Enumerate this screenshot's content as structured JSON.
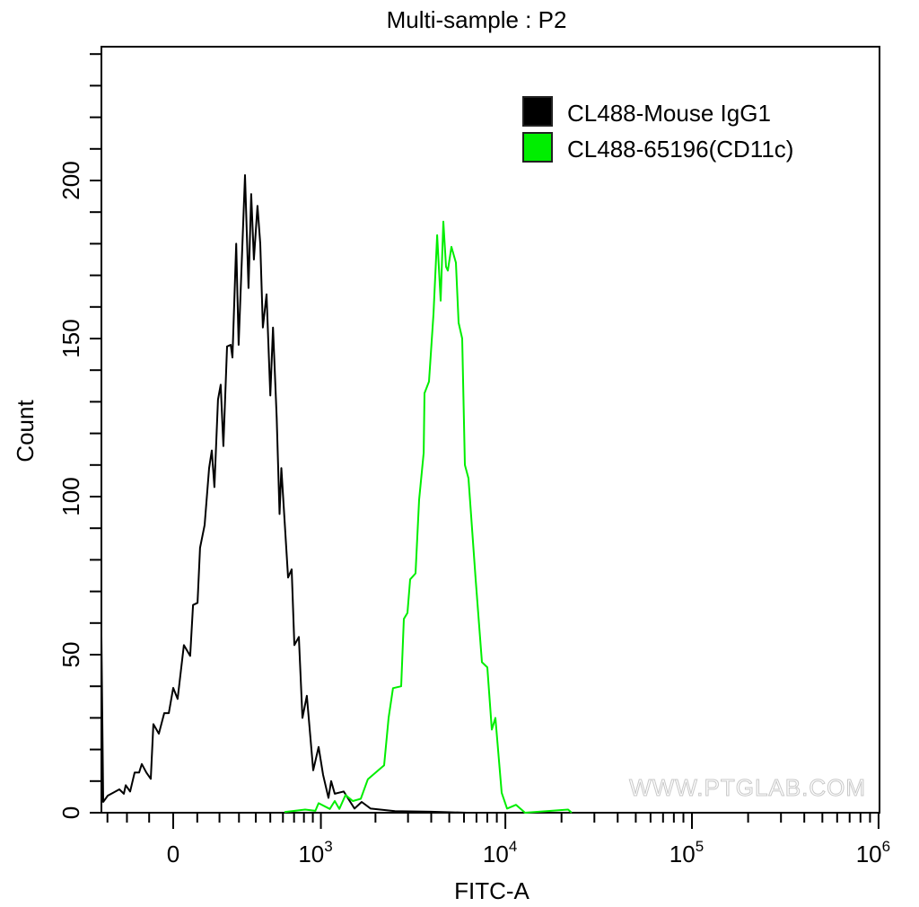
{
  "chart_data": {
    "type": "line",
    "title": "Multi-sample : P2",
    "xlabel": "FITC-A",
    "ylabel": "Count",
    "x_scale": "biexponential",
    "xlim": [
      -334,
      1000000
    ],
    "ylim": [
      0,
      242
    ],
    "x_major_ticks": [
      {
        "value": 0,
        "base": "0",
        "exp": ""
      },
      {
        "value": 1000,
        "base": "10",
        "exp": "3"
      },
      {
        "value": 10000,
        "base": "10",
        "exp": "4"
      },
      {
        "value": 100000,
        "base": "10",
        "exp": "5"
      },
      {
        "value": 1000000,
        "base": "10",
        "exp": "6"
      }
    ],
    "y_tick_labels": [
      "0",
      "50",
      "100",
      "150",
      "200"
    ],
    "y_tick_values": [
      0,
      50,
      100,
      150,
      200
    ],
    "grid": false,
    "legend_position": "top-right",
    "watermark": "WWW.PTGLAB.COM",
    "series": [
      {
        "name": "CL488-Mouse IgG1",
        "color": "#000000",
        "points": [
          [
            -334,
            0
          ],
          [
            -334,
            56
          ],
          [
            -324,
            3.4
          ],
          [
            -298,
            5.4
          ],
          [
            -237,
            7.4
          ],
          [
            -215,
            6
          ],
          [
            -206,
            8.7
          ],
          [
            -185,
            6.7
          ],
          [
            -164,
            12.7
          ],
          [
            -144,
            12.7
          ],
          [
            -132,
            15.4
          ],
          [
            -112,
            12.7
          ],
          [
            -93,
            10.7
          ],
          [
            -82,
            28
          ],
          [
            -59,
            25
          ],
          [
            -37,
            31.5
          ],
          [
            -18,
            31.5
          ],
          [
            0,
            39.5
          ],
          [
            18,
            36
          ],
          [
            44,
            53
          ],
          [
            70,
            49.6
          ],
          [
            82,
            65.7
          ],
          [
            101,
            66.4
          ],
          [
            112,
            83.8
          ],
          [
            132,
            91
          ],
          [
            152,
            109
          ],
          [
            164,
            114.6
          ],
          [
            176,
            103
          ],
          [
            193,
            130.7
          ],
          [
            206,
            135.4
          ],
          [
            219,
            116
          ],
          [
            237,
            147.5
          ],
          [
            256,
            148
          ],
          [
            265,
            144
          ],
          [
            285,
            180
          ],
          [
            298,
            148
          ],
          [
            334,
            201.7
          ],
          [
            355,
            166
          ],
          [
            371,
            195.7
          ],
          [
            388,
            175
          ],
          [
            411,
            192
          ],
          [
            429,
            180
          ],
          [
            447,
            153.5
          ],
          [
            473,
            164
          ],
          [
            500,
            132
          ],
          [
            520,
            153.5
          ],
          [
            549,
            125
          ],
          [
            572,
            94.5
          ],
          [
            587,
            109
          ],
          [
            645,
            74.4
          ],
          [
            678,
            77
          ],
          [
            703,
            53
          ],
          [
            747,
            55.6
          ],
          [
            784,
            30
          ],
          [
            832,
            37
          ],
          [
            905,
            13.4
          ],
          [
            971,
            20.8
          ],
          [
            1029,
            12
          ],
          [
            1103,
            4.7
          ],
          [
            1142,
            10
          ],
          [
            1196,
            6
          ],
          [
            1341,
            6.7
          ],
          [
            1537,
            1.3
          ],
          [
            1683,
            3.4
          ],
          [
            1883,
            1.3
          ],
          [
            2551,
            0.5
          ],
          [
            3980,
            0.3
          ],
          [
            6205,
            0
          ]
        ]
      },
      {
        "name": "CL488-65196(CD11c)",
        "color": "#00ee00",
        "points": [
          [
            613,
            0.2
          ],
          [
            813,
            1
          ],
          [
            930,
            0.6
          ],
          [
            971,
            3
          ],
          [
            1122,
            1.2
          ],
          [
            1196,
            3.7
          ],
          [
            1268,
            1.2
          ],
          [
            1372,
            5.6
          ],
          [
            1504,
            3.7
          ],
          [
            1664,
            4.4
          ],
          [
            1819,
            10.6
          ],
          [
            2108,
            13.8
          ],
          [
            2228,
            15
          ],
          [
            2357,
            30
          ],
          [
            2490,
            39.4
          ],
          [
            2756,
            40
          ],
          [
            2849,
            61.3
          ],
          [
            2978,
            63.2
          ],
          [
            3081,
            73.8
          ],
          [
            3293,
            75.7
          ],
          [
            3443,
            99
          ],
          [
            3642,
            113.9
          ],
          [
            3682,
            132.7
          ],
          [
            3891,
            136.4
          ],
          [
            4113,
            157.7
          ],
          [
            4303,
            182.7
          ],
          [
            4495,
            162
          ],
          [
            4645,
            187
          ],
          [
            4807,
            172.7
          ],
          [
            4914,
            171.5
          ],
          [
            5136,
            179
          ],
          [
            5428,
            174
          ],
          [
            5614,
            155
          ],
          [
            5866,
            150
          ],
          [
            6066,
            110
          ],
          [
            6338,
            105.8
          ],
          [
            6929,
            73.8
          ],
          [
            7490,
            47.6
          ],
          [
            8001,
            46
          ],
          [
            8456,
            26.3
          ],
          [
            8844,
            30
          ],
          [
            9558,
            6.3
          ],
          [
            10216,
            1.3
          ],
          [
            11404,
            2.5
          ],
          [
            12745,
            0
          ],
          [
            21696,
            1
          ],
          [
            22676,
            0
          ]
        ]
      }
    ]
  }
}
